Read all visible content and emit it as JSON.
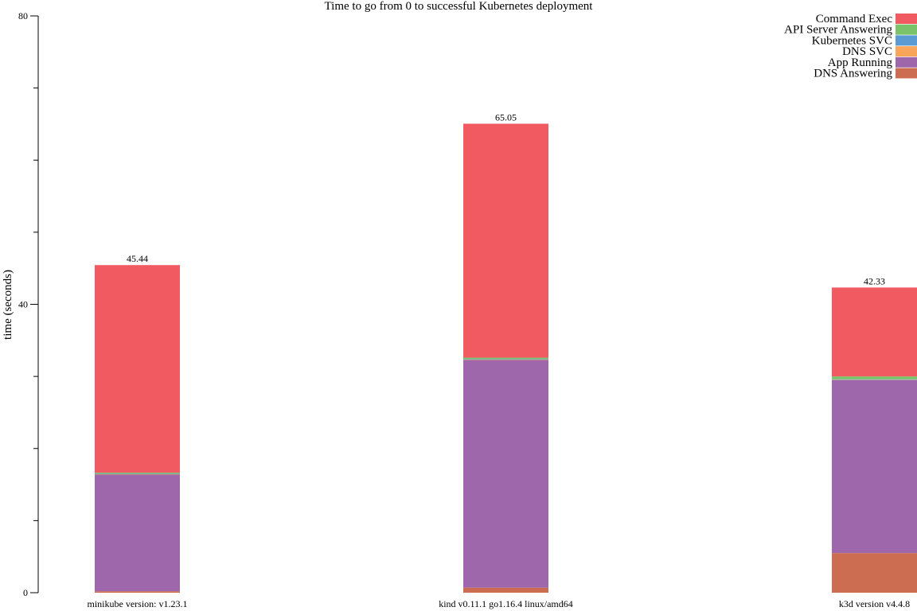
{
  "chart_data": {
    "type": "bar",
    "stacked": true,
    "title": "Time to go from 0 to successful Kubernetes deployment",
    "ylabel": "time (seconds)",
    "xlabel": "",
    "ylim": [
      0,
      80
    ],
    "yticks": [
      0,
      40,
      80
    ],
    "grid": false,
    "legend_position": "top-right",
    "categories": [
      "minikube version: v1.23.1",
      "kind v0.11.1 go1.16.4 linux/amd64",
      "k3d version v4.4.8"
    ],
    "totals": [
      "45.44",
      "65.05",
      "42.33"
    ],
    "series": [
      {
        "name": "DNS Answering",
        "color": "#cc6d52",
        "values": [
          0.2,
          0.7,
          5.5
        ]
      },
      {
        "name": "App Running",
        "color": "#9e67ab",
        "values": [
          16.2,
          31.6,
          24.0
        ]
      },
      {
        "name": "DNS SVC",
        "color": "#faa65a",
        "values": [
          0.05,
          0.05,
          0.05
        ]
      },
      {
        "name": "Kubernetes SVC",
        "color": "#5a9bd4",
        "values": [
          0.05,
          0.05,
          0.05
        ]
      },
      {
        "name": "API Server Answering",
        "color": "#7ac36a",
        "values": [
          0.15,
          0.2,
          0.4
        ]
      },
      {
        "name": "Command Exec",
        "color": "#f15a60",
        "values": [
          28.79,
          32.45,
          12.33
        ]
      }
    ],
    "legend_order": [
      "Command Exec",
      "API Server Answering",
      "Kubernetes SVC",
      "DNS SVC",
      "App Running",
      "DNS Answering"
    ]
  }
}
